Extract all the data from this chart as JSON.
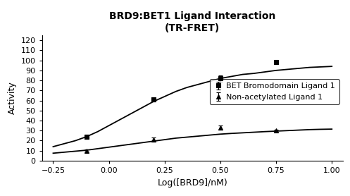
{
  "title_line1": "BRD9:BET1 Ligand Interaction",
  "title_line2": "(TR-FRET)",
  "xlabel": "Log([BRD9]/nM)",
  "ylabel": "Activity",
  "xlim": [
    -0.3,
    1.05
  ],
  "ylim": [
    0,
    125
  ],
  "yticks": [
    0,
    10,
    20,
    30,
    40,
    50,
    60,
    70,
    80,
    90,
    100,
    110,
    120
  ],
  "xticks": [
    -0.25,
    0.0,
    0.25,
    0.5,
    0.75,
    1.0
  ],
  "series1_label": "BET Bromodomain Ligand 1",
  "series1_x": [
    -0.1,
    0.2,
    0.5,
    0.75
  ],
  "series1_y": [
    24,
    61,
    82,
    98
  ],
  "series1_yerr": [
    2,
    2,
    3,
    2
  ],
  "series1_marker": "s",
  "series1_color": "#000000",
  "series1_curve_x": [
    -0.25,
    -0.2,
    -0.15,
    -0.1,
    -0.05,
    0.0,
    0.05,
    0.1,
    0.15,
    0.2,
    0.25,
    0.3,
    0.35,
    0.4,
    0.45,
    0.5,
    0.55,
    0.6,
    0.65,
    0.7,
    0.75,
    0.8,
    0.85,
    0.9,
    0.95,
    1.0
  ],
  "series1_curve_y": [
    14,
    17,
    20,
    24,
    29,
    35,
    41,
    47,
    53,
    59,
    64,
    69,
    73,
    76,
    79,
    82,
    84,
    86,
    87,
    88.5,
    90,
    91,
    92,
    93,
    93.5,
    94
  ],
  "series2_label": "Non-acetylated Ligand 1",
  "series2_x": [
    -0.1,
    0.2,
    0.5,
    0.75
  ],
  "series2_y": [
    10,
    21,
    33,
    30
  ],
  "series2_yerr": [
    1,
    2,
    2,
    1
  ],
  "series2_marker": "^",
  "series2_color": "#000000",
  "series2_curve_x": [
    -0.25,
    -0.2,
    -0.15,
    -0.1,
    -0.05,
    0.0,
    0.05,
    0.1,
    0.15,
    0.2,
    0.25,
    0.3,
    0.35,
    0.4,
    0.45,
    0.5,
    0.55,
    0.6,
    0.65,
    0.7,
    0.75,
    0.8,
    0.85,
    0.9,
    0.95,
    1.0
  ],
  "series2_curve_y": [
    7.5,
    8.5,
    9.5,
    10.5,
    12,
    13.5,
    15,
    16.5,
    18,
    19.5,
    21,
    22.5,
    23.5,
    24.5,
    25.5,
    26.5,
    27.2,
    27.8,
    28.4,
    29.0,
    29.5,
    30.0,
    30.5,
    31.0,
    31.3,
    31.5
  ],
  "curve_color": "#000000",
  "background_color": "#ffffff",
  "title_fontsize": 10,
  "axis_label_fontsize": 9,
  "tick_fontsize": 8,
  "legend_fontsize": 8
}
